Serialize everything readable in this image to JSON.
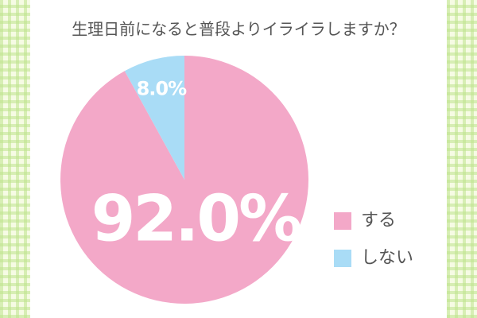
{
  "chart_data": {
    "type": "pie",
    "title": "生理日前になると普段よりイライラしますか？",
    "categories": [
      "する",
      "しない"
    ],
    "values": [
      92.0,
      8.0
    ],
    "value_labels": [
      "92.0%",
      "8.0%"
    ],
    "colors": [
      "#f3a8c8",
      "#a9dcf6"
    ],
    "legend": "right"
  }
}
